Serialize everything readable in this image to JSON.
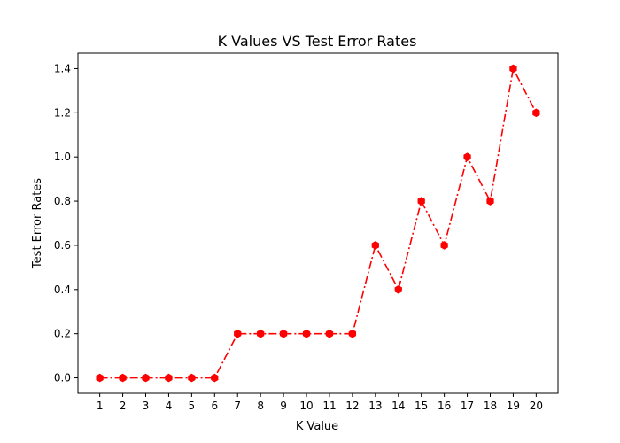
{
  "chart_data": {
    "type": "line",
    "title": "K Values VS Test Error Rates",
    "xlabel": "K Value",
    "ylabel": "Test Error Rates",
    "x": [
      1,
      2,
      3,
      4,
      5,
      6,
      7,
      8,
      9,
      10,
      11,
      12,
      13,
      14,
      15,
      16,
      17,
      18,
      19,
      20
    ],
    "series": [
      {
        "values": [
          0.0,
          0.0,
          0.0,
          0.0,
          0.0,
          0.0,
          0.2,
          0.2,
          0.2,
          0.2,
          0.2,
          0.2,
          0.6,
          0.4,
          0.8,
          0.6,
          1.0,
          0.8,
          1.4,
          1.2
        ],
        "color": "#ff0000",
        "line_style": "dashdot",
        "marker": "hexagon"
      }
    ],
    "xticks": [
      "1",
      "2",
      "3",
      "4",
      "5",
      "6",
      "7",
      "8",
      "9",
      "10",
      "11",
      "12",
      "13",
      "14",
      "15",
      "16",
      "17",
      "18",
      "19",
      "20"
    ],
    "yticks": [
      "0.0",
      "0.2",
      "0.4",
      "0.6",
      "0.8",
      "1.0",
      "1.2",
      "1.4"
    ],
    "ytick_values": [
      0.0,
      0.2,
      0.4,
      0.6,
      0.8,
      1.0,
      1.2,
      1.4
    ],
    "xlim": [
      0.05,
      20.95
    ],
    "ylim": [
      -0.07,
      1.47
    ],
    "grid": false,
    "legend": false
  }
}
